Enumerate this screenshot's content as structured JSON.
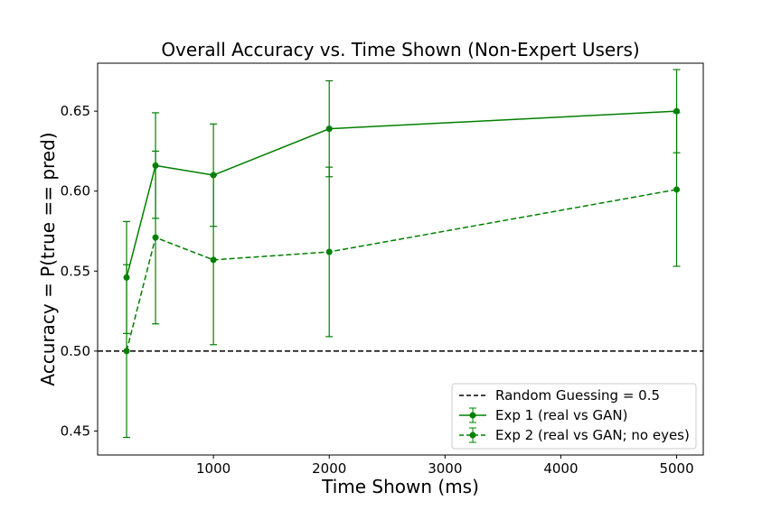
{
  "chart_data": {
    "type": "line",
    "title": "Overall Accuracy vs. Time Shown (Non-Expert Users)",
    "xlabel": "Time Shown (ms)",
    "ylabel": "Accuracy = P(true == pred)",
    "xlim": [
      0,
      5230
    ],
    "ylim": [
      0.435,
      0.68
    ],
    "xticks": [
      1000,
      2000,
      3000,
      4000,
      5000
    ],
    "yticks": [
      0.45,
      0.5,
      0.55,
      0.6,
      0.65
    ],
    "ytick_labels": [
      "0.45",
      "0.50",
      "0.55",
      "0.60",
      "0.65"
    ],
    "grid": false,
    "legend_position": "lower-right",
    "color": "#008000",
    "reference_line": {
      "name": "Random Guessing = 0.5",
      "y": 0.5,
      "color": "#000000",
      "style": "dashed"
    },
    "series": [
      {
        "name": "Exp 1 (real vs GAN)",
        "style": "solid",
        "x": [
          250,
          500,
          1000,
          2000,
          5000
        ],
        "y": [
          0.546,
          0.616,
          0.61,
          0.639,
          0.65
        ],
        "err": [
          0.035,
          0.033,
          0.032,
          0.03,
          0.026
        ]
      },
      {
        "name": "Exp 2 (real vs GAN; no eyes)",
        "style": "dashed",
        "x": [
          250,
          500,
          1000,
          2000,
          5000
        ],
        "y": [
          0.5,
          0.571,
          0.557,
          0.562,
          0.601
        ],
        "err": [
          0.054,
          0.054,
          0.053,
          0.053,
          0.048
        ]
      }
    ]
  }
}
